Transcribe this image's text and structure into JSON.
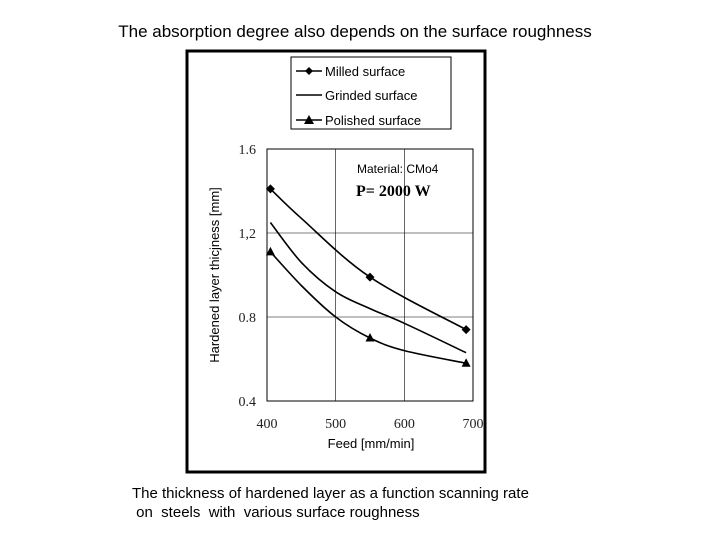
{
  "slide": {
    "title": "The absorption degree also depends on the surface roughness",
    "caption_line1": "The thickness of hardened layer as a function scanning rate",
    "caption_line2": " on  steels  with  various surface roughness"
  },
  "chart_data": {
    "type": "line",
    "title": "",
    "xlabel": "Feed [mm/min]",
    "ylabel": "Hardened layer thicjness [mm]",
    "xlim": [
      400,
      700
    ],
    "ylim": [
      0.4,
      1.6
    ],
    "x_ticks": [
      400,
      500,
      600,
      700
    ],
    "y_ticks": [
      0.4,
      0.8,
      1.2,
      1.6
    ],
    "x_tick_labels": [
      "400",
      "500",
      "600",
      "700"
    ],
    "y_tick_labels": [
      "0.4",
      "0.8",
      "1,2",
      "1.6"
    ],
    "grid": true,
    "legend_position": "top",
    "annotations": [
      {
        "text": "Material: CMo4"
      },
      {
        "text": "P= 2000 W"
      }
    ],
    "series": [
      {
        "name": "Milled surface",
        "marker": "diamond",
        "x": [
          405,
          450,
          550,
          690
        ],
        "y": [
          1.41,
          1.27,
          0.99,
          0.74
        ],
        "marker_points": [
          [
            405,
            1.41
          ],
          [
            550,
            0.99
          ],
          [
            690,
            0.74
          ]
        ]
      },
      {
        "name": "Grinded surface",
        "marker": "none",
        "x": [
          405,
          450,
          500,
          550,
          600,
          690
        ],
        "y": [
          1.25,
          1.06,
          0.92,
          0.84,
          0.77,
          0.63
        ],
        "marker_points": []
      },
      {
        "name": "Polished surface",
        "marker": "triangle",
        "x": [
          405,
          450,
          500,
          550,
          600,
          690
        ],
        "y": [
          1.11,
          0.95,
          0.8,
          0.7,
          0.64,
          0.58
        ],
        "marker_points": [
          [
            405,
            1.11
          ],
          [
            550,
            0.7
          ],
          [
            690,
            0.58
          ]
        ]
      }
    ]
  }
}
